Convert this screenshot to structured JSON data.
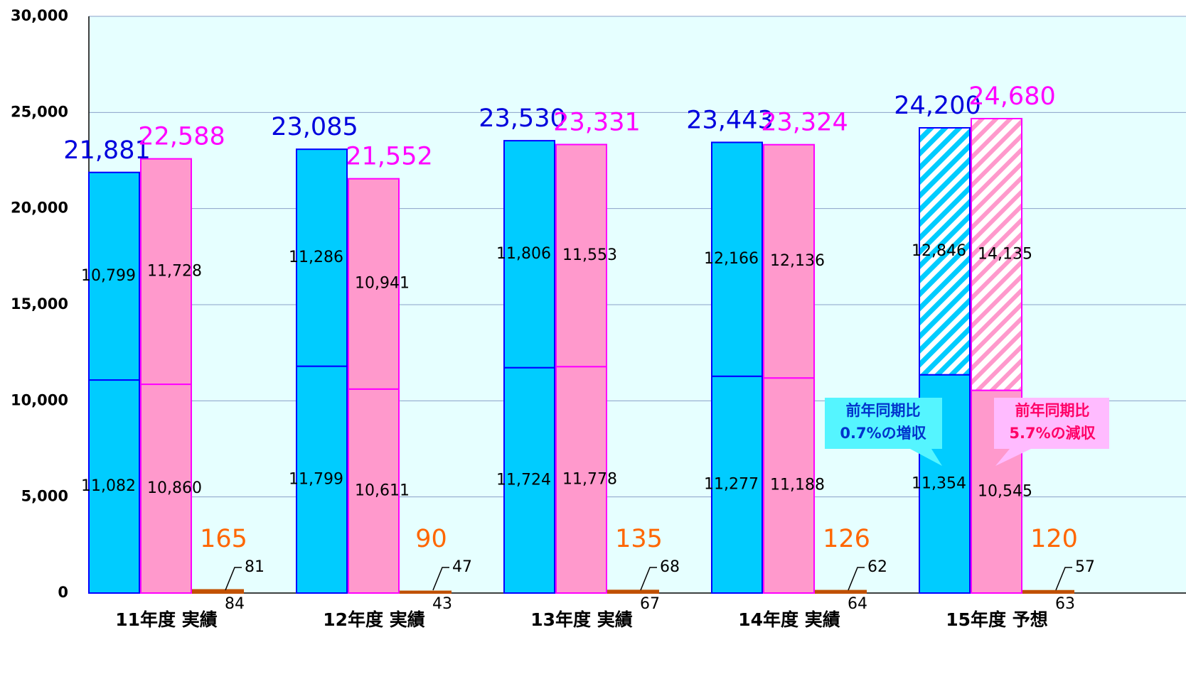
{
  "chart_data": {
    "type": "stacked_bar",
    "categories": [
      "11年度 実績",
      "12年度 実績",
      "13年度 実績",
      "14年度 実績",
      "15年度 予想"
    ],
    "ylim": [
      0,
      30000
    ],
    "yticks": [
      0,
      {
        "value": 5000,
        "label": "5,000"
      },
      {
        "value": 10000,
        "label": "10,000"
      },
      {
        "value": 15000,
        "label": "15,000"
      },
      {
        "value": 20000,
        "label": "20,000"
      },
      {
        "value": 25000,
        "label": "25,000"
      },
      {
        "value": 30000,
        "label": "30,000"
      }
    ],
    "grid": true,
    "series": [
      {
        "stack": 0,
        "color": "#00ccff",
        "edge": "#0000ff",
        "values": [
          11082,
          11799,
          11724,
          11277,
          11354
        ],
        "value_labels": [
          "11,082",
          "11,799",
          "11,724",
          "11,277",
          "11,354"
        ]
      },
      {
        "stack": 0,
        "color": "#00ccff",
        "edge": "#0000ff",
        "values": [
          10799,
          11286,
          11806,
          12166,
          12846
        ],
        "value_labels": [
          "10,799",
          "11,286",
          "11,806",
          "12,166",
          "12,846"
        ],
        "hatched": [
          4
        ]
      },
      {
        "stack": 1,
        "color": "#ff99cc",
        "edge": "#ff00ff",
        "values": [
          10860,
          10611,
          11778,
          11188,
          10545
        ],
        "value_labels": [
          "10,860",
          "10,611",
          "11,778",
          "11,188",
          "10,545"
        ]
      },
      {
        "stack": 1,
        "color": "#ff99cc",
        "edge": "#ff00ff",
        "values": [
          11728,
          10941,
          11553,
          12136,
          14135
        ],
        "value_labels": [
          "11,728",
          "10,941",
          "11,553",
          "12,136",
          "14,135"
        ],
        "hatched": [
          4
        ]
      },
      {
        "stack": 2,
        "color": "#e86a10",
        "edge": "#c05000",
        "values": [
          84,
          43,
          67,
          64,
          63
        ]
      },
      {
        "stack": 2,
        "color": "#e86a10",
        "edge": "#c05000",
        "values": [
          81,
          47,
          68,
          62,
          57
        ]
      }
    ],
    "totals": [
      {
        "color": "#0000dd",
        "values": [
          21881,
          23085,
          23530,
          23443,
          24200
        ],
        "value_labels": [
          "21,881",
          "23,085",
          "23,530",
          "23,443",
          "24,200"
        ]
      },
      {
        "color": "#ff00ff",
        "values": [
          22588,
          21552,
          23331,
          23324,
          24680
        ],
        "value_labels": [
          "22,588",
          "21,552",
          "23,331",
          "23,324",
          "24,680"
        ]
      },
      {
        "color": "#ff6600",
        "values": [
          165,
          90,
          135,
          126,
          120
        ]
      }
    ],
    "annotations": [
      {
        "lines": [
          "前年同期比",
          "0.7%の増収"
        ]
      },
      {
        "lines": [
          "前年同期比",
          "5.7%の減収"
        ]
      }
    ]
  }
}
